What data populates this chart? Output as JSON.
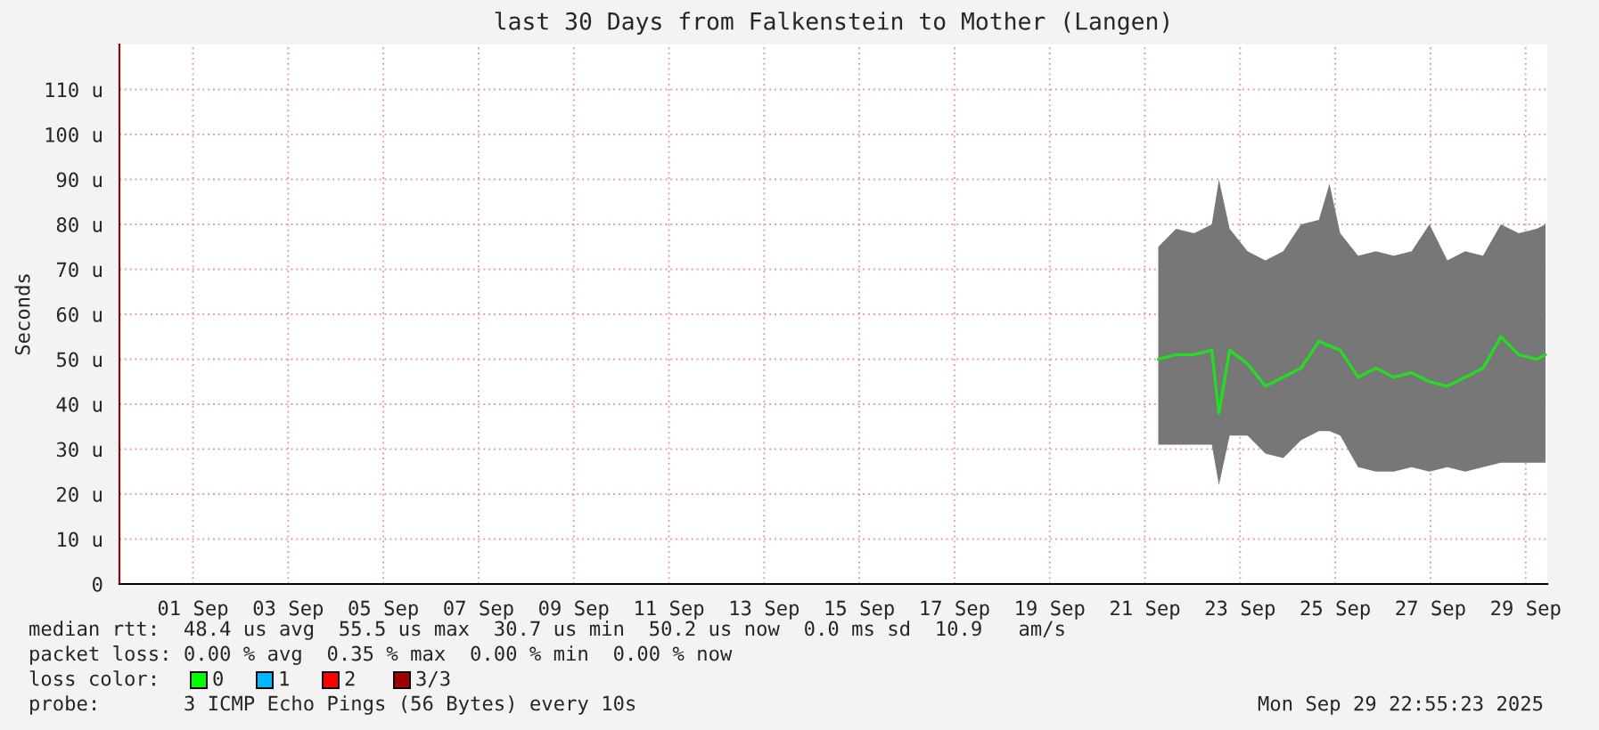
{
  "chart_data": {
    "type": "line",
    "title": "last 30 Days from Falkenstein to Mother (Langen)",
    "ylabel": "Seconds",
    "xlim": [
      "2025-08-30T22:55",
      "2025-09-29T22:55"
    ],
    "xticks": [
      {
        "value": "2025-09-01T12:00",
        "label": "01 Sep"
      },
      {
        "value": "2025-09-03T12:00",
        "label": "03 Sep"
      },
      {
        "value": "2025-09-05T12:00",
        "label": "05 Sep"
      },
      {
        "value": "2025-09-07T12:00",
        "label": "07 Sep"
      },
      {
        "value": "2025-09-09T12:00",
        "label": "09 Sep"
      },
      {
        "value": "2025-09-11T12:00",
        "label": "11 Sep"
      },
      {
        "value": "2025-09-13T12:00",
        "label": "13 Sep"
      },
      {
        "value": "2025-09-15T12:00",
        "label": "15 Sep"
      },
      {
        "value": "2025-09-17T12:00",
        "label": "17 Sep"
      },
      {
        "value": "2025-09-19T12:00",
        "label": "19 Sep"
      },
      {
        "value": "2025-09-21T12:00",
        "label": "21 Sep"
      },
      {
        "value": "2025-09-23T12:00",
        "label": "23 Sep"
      },
      {
        "value": "2025-09-25T12:00",
        "label": "25 Sep"
      },
      {
        "value": "2025-09-27T12:00",
        "label": "27 Sep"
      },
      {
        "value": "2025-09-29T12:00",
        "label": "29 Sep"
      }
    ],
    "ylim": [
      0,
      120
    ],
    "yticks": [
      0,
      {
        "value": 10,
        "label": "10 u"
      },
      {
        "value": 20,
        "label": "20 u"
      },
      {
        "value": 30,
        "label": "30 u"
      },
      {
        "value": 40,
        "label": "40 u"
      },
      {
        "value": 50,
        "label": "50 u"
      },
      {
        "value": 60,
        "label": "60 u"
      },
      {
        "value": 70,
        "label": "70 u"
      },
      {
        "value": 80,
        "label": "80 u"
      },
      {
        "value": 90,
        "label": "90 u"
      },
      {
        "value": 100,
        "label": "100 u"
      },
      {
        "value": 110,
        "label": "110 u"
      }
    ],
    "x": [
      "2025-09-21T18:45",
      "2025-09-22T03:45",
      "2025-09-22T12:45",
      "2025-09-22T21:45",
      "2025-09-23T01:20",
      "2025-09-23T06:45",
      "2025-09-23T15:45",
      "2025-09-24T00:45",
      "2025-09-24T09:45",
      "2025-09-24T18:45",
      "2025-09-25T03:45",
      "2025-09-25T09:05",
      "2025-09-25T14:30",
      "2025-09-25T23:30",
      "2025-09-26T08:30",
      "2025-09-26T17:30",
      "2025-09-27T02:30",
      "2025-09-27T11:30",
      "2025-09-27T20:30",
      "2025-09-28T05:30",
      "2025-09-28T14:30",
      "2025-09-28T23:30",
      "2025-09-29T08:30",
      "2025-09-29T17:30",
      "2025-09-29T22:00"
    ],
    "series": [
      {
        "color": "#22dd22",
        "values": [
          50,
          51,
          51,
          52,
          38,
          52,
          49,
          44,
          46,
          48,
          54,
          53,
          52,
          46,
          48,
          46,
          47,
          45,
          44,
          46,
          48,
          55,
          51,
          50,
          51
        ],
        "lower": [
          31,
          31,
          31,
          31,
          22,
          33,
          33,
          29,
          28,
          32,
          34,
          34,
          33,
          26,
          25,
          25,
          26,
          25,
          26,
          25,
          26,
          27,
          27,
          27,
          27
        ],
        "upper": [
          75,
          79,
          78,
          80,
          90,
          79,
          74,
          72,
          74,
          80,
          81,
          89,
          78,
          73,
          74,
          73,
          74,
          80,
          72,
          74,
          73,
          80,
          78,
          79,
          80
        ]
      }
    ],
    "grid": true,
    "annotations": [
      "median rtt:  48.4 us avg  55.5 us max  30.7 us min  50.2 us now  0.0 ms sd  10.9   am/s",
      "packet loss: 0.00 % avg  0.35 % max  0.00 % min  0.00 % now",
      "loss color:",
      "0",
      "1",
      "2",
      "3/3",
      "probe:       3 ICMP Echo Pings (56 Bytes) every 10s",
      "Mon Sep 29 22:55:23 2025"
    ]
  }
}
